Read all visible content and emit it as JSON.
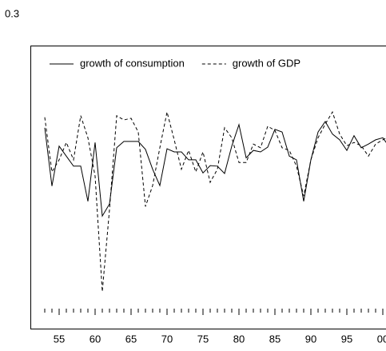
{
  "chart_data": {
    "type": "line",
    "x": [
      1953,
      1954,
      1955,
      1956,
      1957,
      1958,
      1959,
      1960,
      1961,
      1962,
      1963,
      1964,
      1965,
      1966,
      1967,
      1968,
      1969,
      1970,
      1971,
      1972,
      1973,
      1974,
      1975,
      1976,
      1977,
      1978,
      1979,
      1980,
      1981,
      1982,
      1983,
      1984,
      1985,
      1986,
      1987,
      1988,
      1989,
      1990,
      1991,
      1992,
      1993,
      1994,
      1995,
      1996,
      1997,
      1998,
      1999,
      2000,
      2001
    ],
    "series": [
      {
        "name": "growth of consumption",
        "color": "#000000",
        "dash": false,
        "values": [
          0.084,
          -0.027,
          0.049,
          0.03,
          0.011,
          0.011,
          -0.056,
          0.056,
          -0.084,
          -0.061,
          0.046,
          0.058,
          0.058,
          0.058,
          0.043,
          0.005,
          -0.026,
          0.044,
          0.038,
          0.038,
          0.023,
          0.023,
          -0.002,
          0.012,
          0.011,
          -0.003,
          0.049,
          0.09,
          0.027,
          0.041,
          0.038,
          0.047,
          0.081,
          0.076,
          0.03,
          0.023,
          -0.056,
          0.023,
          0.076,
          0.096,
          0.072,
          0.061,
          0.041,
          0.069,
          0.046,
          0.053,
          0.061,
          0.065,
          0.046
        ]
      },
      {
        "name": "growth of GDP",
        "color": "#000000",
        "dash": true,
        "values": [
          0.104,
          0.0,
          0.023,
          0.056,
          0.023,
          0.107,
          0.065,
          -0.008,
          -0.228,
          -0.072,
          0.107,
          0.099,
          0.102,
          0.076,
          -0.066,
          -0.026,
          0.046,
          0.114,
          0.061,
          0.005,
          0.041,
          0.0,
          0.038,
          -0.02,
          0.005,
          0.084,
          0.065,
          0.018,
          0.018,
          0.053,
          0.046,
          0.087,
          0.079,
          0.046,
          0.041,
          0.011,
          -0.046,
          0.023,
          0.065,
          0.091,
          0.114,
          0.072,
          0.05,
          0.056,
          0.05,
          0.03,
          0.053,
          0.061,
          0.069
        ]
      }
    ],
    "xlim": [
      1951,
      2001
    ],
    "xticks": [
      {
        "value": 1955,
        "label": "55"
      },
      {
        "value": 1960,
        "label": "60"
      },
      {
        "value": 1965,
        "label": "65"
      },
      {
        "value": 1970,
        "label": "70"
      },
      {
        "value": 1975,
        "label": "75"
      },
      {
        "value": 1980,
        "label": "80"
      },
      {
        "value": 1985,
        "label": "85"
      },
      {
        "value": 1990,
        "label": "90"
      },
      {
        "value": 1995,
        "label": "95"
      },
      {
        "value": 2000,
        "label": "00"
      }
    ],
    "ylim": [
      -0.3,
      0.3
    ],
    "yticks": [
      0.3
    ],
    "grid": false,
    "legend": "top"
  }
}
